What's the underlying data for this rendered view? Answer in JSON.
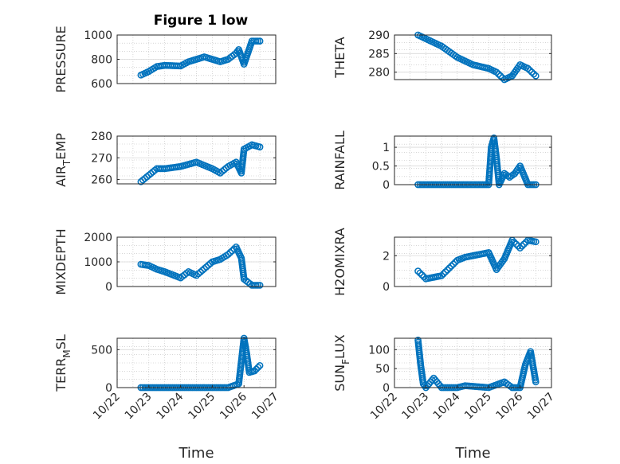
{
  "figure": {
    "title": "Figure 1 low",
    "marker_color": "#0072BD"
  },
  "chart_data": [
    {
      "type": "scatter",
      "title": "Figure 1 low",
      "ylabel_main": "PRESSURE",
      "ylabel_sub": "",
      "ylabel_tail": "",
      "ylim": [
        600,
        1000
      ],
      "yticks": [
        "600",
        "800",
        "1000"
      ],
      "xlim": [
        "10/22",
        "10/27"
      ],
      "xtick_labels": false,
      "x": [
        "10/22 18:00",
        "10/23 00:00",
        "10/23 06:00",
        "10/23 12:00",
        "10/24 00:00",
        "10/24 06:00",
        "10/24 12:00",
        "10/24 18:00",
        "10/25 00:00",
        "10/25 06:00",
        "10/25 12:00",
        "10/25 18:00",
        "10/25 20:00",
        "10/26 00:00",
        "10/26 06:00",
        "10/26 12:00"
      ],
      "y": [
        670,
        700,
        740,
        750,
        745,
        780,
        800,
        820,
        800,
        780,
        800,
        850,
        880,
        760,
        950,
        950
      ]
    },
    {
      "type": "scatter",
      "title": "",
      "ylabel_main": "THETA",
      "ylabel_sub": "",
      "ylabel_tail": "",
      "ylim": [
        278,
        290
      ],
      "yticks": [
        "280",
        "285",
        "290"
      ],
      "xlim": [
        "10/22",
        "10/27"
      ],
      "xtick_labels": false,
      "x": [
        "10/22 18:00",
        "10/23 00:00",
        "10/23 06:00",
        "10/23 12:00",
        "10/24 00:00",
        "10/24 06:00",
        "10/24 12:00",
        "10/25 00:00",
        "10/25 06:00",
        "10/25 12:00",
        "10/25 18:00",
        "10/26 00:00",
        "10/26 06:00",
        "10/26 12:00"
      ],
      "y": [
        290,
        289,
        288,
        287,
        284,
        283,
        282,
        281,
        280,
        278,
        279,
        282,
        281,
        279
      ]
    },
    {
      "type": "scatter",
      "title": "",
      "ylabel_main": "AIR",
      "ylabel_sub": "T",
      "ylabel_tail": "EMP",
      "ylim": [
        258,
        280
      ],
      "yticks": [
        "260",
        "270",
        "280"
      ],
      "xlim": [
        "10/22",
        "10/27"
      ],
      "xtick_labels": false,
      "x": [
        "10/22 18:00",
        "10/23 00:00",
        "10/23 06:00",
        "10/23 12:00",
        "10/24 00:00",
        "10/24 06:00",
        "10/24 12:00",
        "10/25 00:00",
        "10/25 06:00",
        "10/25 12:00",
        "10/25 18:00",
        "10/25 22:00",
        "10/26 00:00",
        "10/26 06:00",
        "10/26 12:00"
      ],
      "y": [
        259,
        262,
        265,
        265,
        266,
        267,
        268,
        265,
        263,
        266,
        268,
        263,
        274,
        276,
        275
      ]
    },
    {
      "type": "scatter",
      "title": "",
      "ylabel_main": "RAINFALL",
      "ylabel_sub": "",
      "ylabel_tail": "",
      "ylim": [
        0,
        1.3
      ],
      "yticks": [
        "0",
        "0.5",
        "1"
      ],
      "xlim": [
        "10/22",
        "10/27"
      ],
      "xtick_labels": false,
      "x": [
        "10/22 18:00",
        "10/23 06:00",
        "10/24 00:00",
        "10/24 12:00",
        "10/25 00:00",
        "10/25 02:00",
        "10/25 04:00",
        "10/25 06:00",
        "10/25 08:00",
        "10/25 12:00",
        "10/25 16:00",
        "10/25 20:00",
        "10/26 00:00",
        "10/26 06:00",
        "10/26 12:00"
      ],
      "y": [
        0,
        0,
        0,
        0,
        0,
        1.0,
        1.25,
        0.7,
        0,
        0.3,
        0.2,
        0.3,
        0.5,
        0,
        0
      ]
    },
    {
      "type": "scatter",
      "title": "",
      "ylabel_main": "MIXDEPTH",
      "ylabel_sub": "",
      "ylabel_tail": "",
      "ylim": [
        0,
        2000
      ],
      "yticks": [
        "0",
        "1000",
        "2000"
      ],
      "xlim": [
        "10/22",
        "10/27"
      ],
      "xtick_labels": false,
      "x": [
        "10/22 18:00",
        "10/23 00:00",
        "10/23 06:00",
        "10/23 12:00",
        "10/24 00:00",
        "10/24 06:00",
        "10/24 12:00",
        "10/25 00:00",
        "10/25 06:00",
        "10/25 12:00",
        "10/25 18:00",
        "10/25 22:00",
        "10/26 00:00",
        "10/26 06:00",
        "10/26 12:00"
      ],
      "y": [
        900,
        850,
        700,
        600,
        350,
        600,
        450,
        1000,
        1100,
        1300,
        1600,
        1150,
        300,
        50,
        50
      ]
    },
    {
      "type": "scatter",
      "title": "",
      "ylabel_main": "H2OMIXRA",
      "ylabel_sub": "",
      "ylabel_tail": "",
      "ylim": [
        0,
        3.2
      ],
      "yticks": [
        "0",
        "2"
      ],
      "xlim": [
        "10/22",
        "10/27"
      ],
      "xtick_labels": false,
      "x": [
        "10/22 18:00",
        "10/23 00:00",
        "10/23 06:00",
        "10/23 12:00",
        "10/24 00:00",
        "10/24 06:00",
        "10/24 12:00",
        "10/25 00:00",
        "10/25 06:00",
        "10/25 12:00",
        "10/25 18:00",
        "10/26 00:00",
        "10/26 06:00",
        "10/26 12:00"
      ],
      "y": [
        1.0,
        0.5,
        0.6,
        0.7,
        1.7,
        1.9,
        2.0,
        2.2,
        1.1,
        1.8,
        3.0,
        2.5,
        3.0,
        2.9
      ]
    },
    {
      "type": "scatter",
      "title": "",
      "ylabel_main": "TERR",
      "ylabel_sub": "M",
      "ylabel_tail": "SL",
      "ylim": [
        0,
        650
      ],
      "yticks": [
        "0",
        "500"
      ],
      "xlim": [
        "10/22",
        "10/27"
      ],
      "xtick_labels": true,
      "xticks": [
        "10/22",
        "10/23",
        "10/24",
        "10/25",
        "10/26",
        "10/27"
      ],
      "xlabel": "Time",
      "x": [
        "10/22 18:00",
        "10/23 06:00",
        "10/24 00:00",
        "10/24 12:00",
        "10/25 00:00",
        "10/25 12:00",
        "10/25 20:00",
        "10/26 00:00",
        "10/26 02:00",
        "10/26 04:00",
        "10/26 08:00",
        "10/26 12:00"
      ],
      "y": [
        0,
        0,
        0,
        0,
        0,
        0,
        50,
        650,
        450,
        200,
        220,
        290
      ]
    },
    {
      "type": "scatter",
      "title": "",
      "ylabel_main": "SUN",
      "ylabel_sub": "F",
      "ylabel_tail": "LUX",
      "ylim": [
        0,
        130
      ],
      "yticks": [
        "0",
        "50",
        "100"
      ],
      "xlim": [
        "10/22",
        "10/27"
      ],
      "xtick_labels": true,
      "xticks": [
        "10/22",
        "10/23",
        "10/24",
        "10/25",
        "10/26",
        "10/27"
      ],
      "xlabel": "Time",
      "x": [
        "10/22 18:00",
        "10/22 20:00",
        "10/22 22:00",
        "10/23 00:00",
        "10/23 06:00",
        "10/23 12:00",
        "10/24 00:00",
        "10/24 06:00",
        "10/25 00:00",
        "10/25 12:00",
        "10/25 18:00",
        "10/26 00:00",
        "10/26 04:00",
        "10/26 08:00",
        "10/26 12:00"
      ],
      "y": [
        125,
        60,
        10,
        0,
        25,
        0,
        0,
        5,
        0,
        15,
        0,
        0,
        60,
        95,
        15
      ]
    }
  ]
}
